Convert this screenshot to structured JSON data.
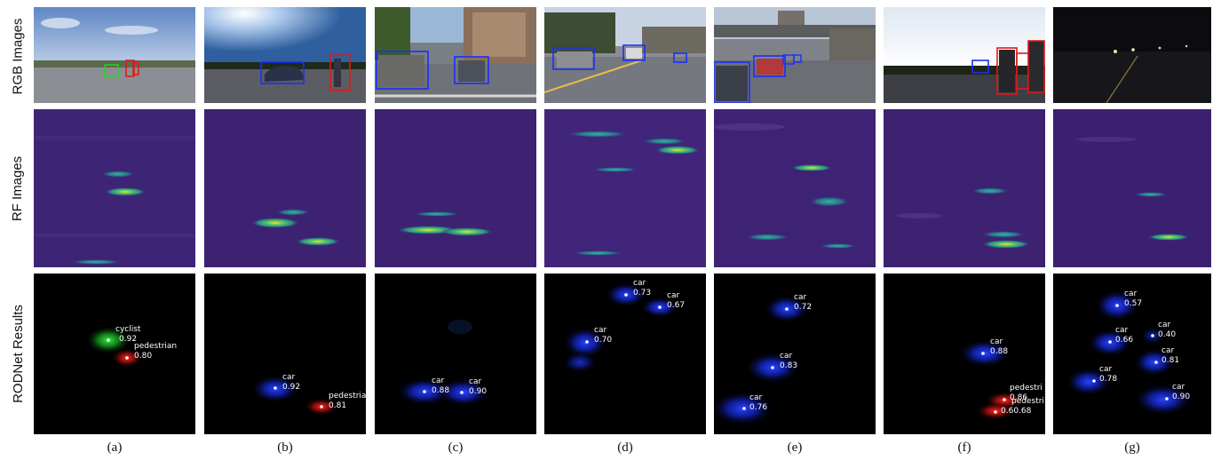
{
  "row_labels": {
    "rgb": "RGB Images",
    "rf": "RF Images",
    "results": "RODNet Results"
  },
  "columns": [
    {
      "caption": "(a)",
      "detections": [
        {
          "label": "cyclist",
          "score": "0.92",
          "class": "cyclist"
        },
        {
          "label": "pedestrian",
          "score": "0.80",
          "class": "pedestrian"
        }
      ]
    },
    {
      "caption": "(b)",
      "detections": [
        {
          "label": "car",
          "score": "0.92",
          "class": "car"
        },
        {
          "label": "pedestria",
          "score": "0.81",
          "class": "pedestrian"
        }
      ]
    },
    {
      "caption": "(c)",
      "detections": [
        {
          "label": "car",
          "score": "0.88",
          "class": "car"
        },
        {
          "label": "car",
          "score": "0.90",
          "class": "car"
        }
      ]
    },
    {
      "caption": "(d)",
      "detections": [
        {
          "label": "car",
          "score": "0.73",
          "class": "car"
        },
        {
          "label": "car",
          "score": "0.67",
          "class": "car"
        },
        {
          "label": "car",
          "score": "0.70",
          "class": "car"
        }
      ]
    },
    {
      "caption": "(e)",
      "detections": [
        {
          "label": "car",
          "score": "0.72",
          "class": "car"
        },
        {
          "label": "car",
          "score": "0.83",
          "class": "car"
        },
        {
          "label": "car",
          "score": "0.76",
          "class": "car"
        }
      ]
    },
    {
      "caption": "(f)",
      "detections": [
        {
          "label": "car",
          "score": "0.88",
          "class": "car"
        },
        {
          "label": "pedestri",
          "score": "0.86",
          "class": "pedestrian"
        },
        {
          "label": "pedestri",
          "score": "0.60.68",
          "class": "pedestrian"
        }
      ]
    },
    {
      "caption": "(g)",
      "detections": [
        {
          "label": "car",
          "score": "0.57",
          "class": "car"
        },
        {
          "label": "car",
          "score": "0.66",
          "class": "car"
        },
        {
          "label": "car",
          "score": "0.40",
          "class": "car"
        },
        {
          "label": "car",
          "score": "0.81",
          "class": "car"
        },
        {
          "label": "car",
          "score": "0.78",
          "class": "car"
        },
        {
          "label": "car",
          "score": "0.90",
          "class": "car"
        }
      ]
    }
  ],
  "colors": {
    "car": "#1a2eff",
    "pedestrian": "#e01818",
    "cyclist": "#22c22a",
    "rf_background": "#3b1a6e",
    "detection_background": "#000000"
  }
}
